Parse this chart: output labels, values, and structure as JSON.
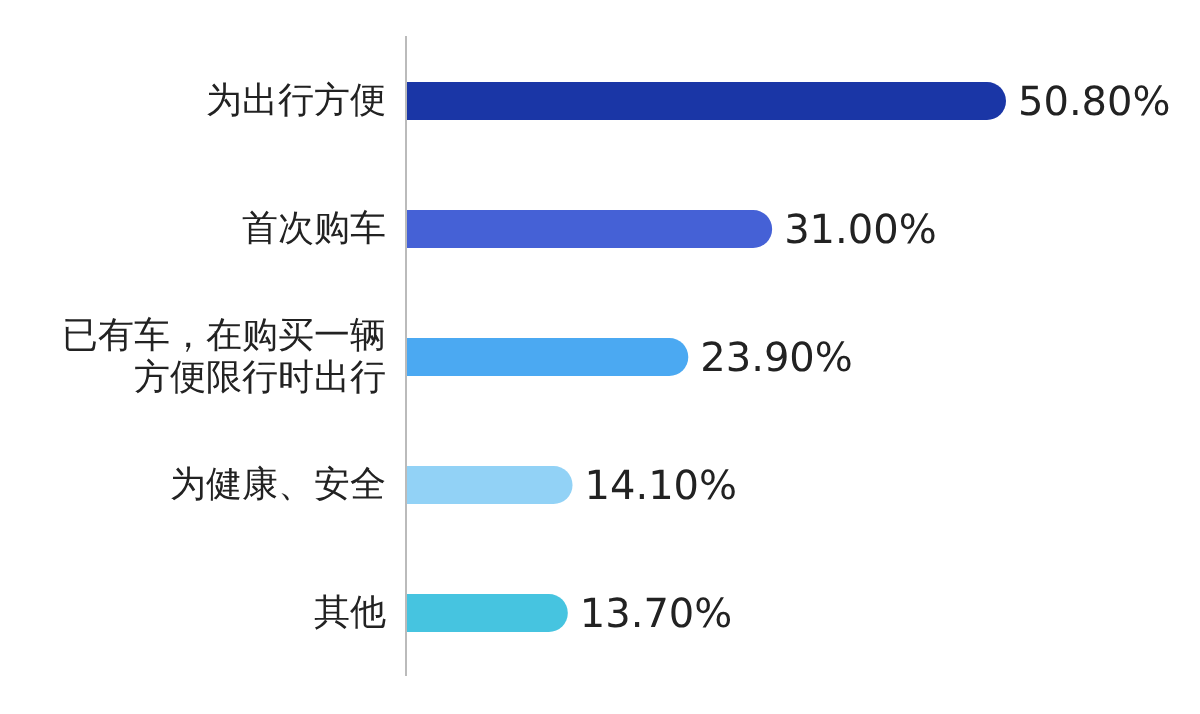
{
  "chart_data": {
    "type": "bar",
    "orientation": "horizontal",
    "categories": [
      "为出行方便",
      "首次购车",
      "已有车，在购买一辆方便限行时出行",
      "为健康、安全",
      "其他"
    ],
    "values": [
      50.8,
      31.0,
      23.9,
      14.1,
      13.7
    ],
    "value_labels": [
      "50.80%",
      "31.00%",
      "23.90%",
      "14.10%",
      "13.70%"
    ],
    "colors": [
      "#1a36a6",
      "#4561d6",
      "#4ba9f2",
      "#92d2f6",
      "#46c4e0"
    ]
  }
}
